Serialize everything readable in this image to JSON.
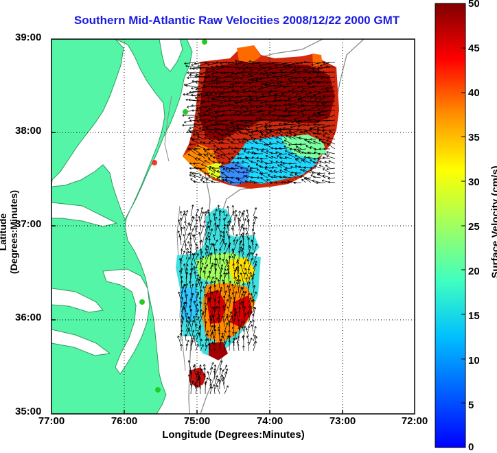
{
  "title": "Southern Mid-Atlantic Raw Velocities 2008/12/22 2000 GMT",
  "axes": {
    "xlabel": "Longitude (Degrees:Minutes)",
    "ylabel": "Latitude (Degrees:Minutes)",
    "xticks": [
      "77:00",
      "76:00",
      "75:00",
      "74:00",
      "73:00",
      "72:00"
    ],
    "yticks": [
      "39:00",
      "38:00",
      "37:00",
      "36:00",
      "35:00"
    ]
  },
  "colorbar": {
    "label": "Surface Velocity (cm/s)",
    "min": 0,
    "max": 50,
    "ticks": [
      "50",
      "45",
      "40",
      "35",
      "30",
      "25",
      "20",
      "15",
      "10",
      "5",
      "0"
    ],
    "colormap": "jet"
  },
  "map": {
    "lon_range": [
      -77,
      -72
    ],
    "lat_range": [
      35,
      39
    ],
    "grid": "dotted",
    "land_color": "#55f5a8",
    "contour_color": "#808080",
    "vector_color": "#000000",
    "stations": [
      "station-1",
      "station-2",
      "station-3",
      "station-4",
      "station-5",
      "station-6"
    ]
  }
}
